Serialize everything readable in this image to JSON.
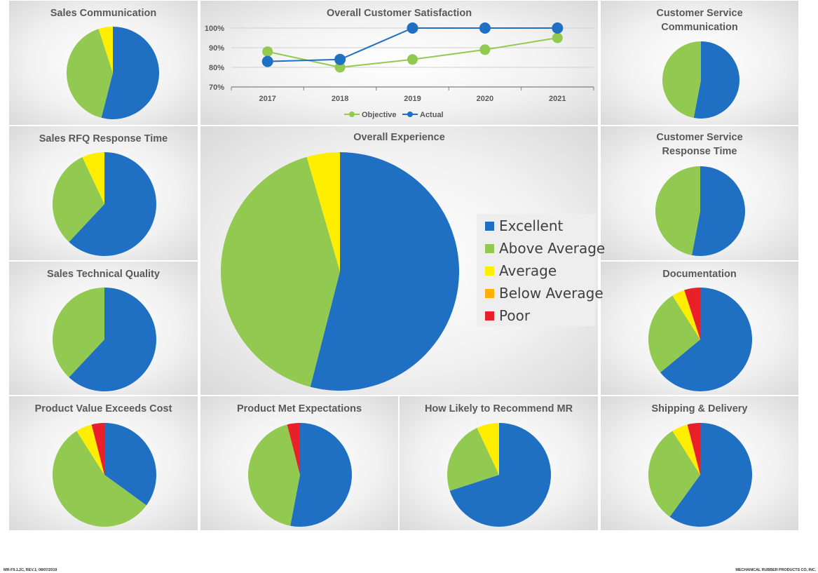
{
  "colors": {
    "Excellent": "#1f6fc2",
    "Above Average": "#92c950",
    "Average": "#ffee00",
    "Below Average": "#ffb000",
    "Poor": "#e8202a"
  },
  "legend": {
    "items": [
      "Excellent",
      "Above Average",
      "Average",
      "Below Average",
      "Poor"
    ]
  },
  "footer": {
    "left": "MR-F9.1.2C, REV.1; 08/07/2019",
    "right": "MECHANICAL RUBBER PRODUCTS CO, INC."
  },
  "chart_data": [
    {
      "id": "sales-communication",
      "type": "pie",
      "title": "Sales Communication",
      "categories": [
        "Excellent",
        "Above Average",
        "Average",
        "Below Average",
        "Poor"
      ],
      "values": [
        54,
        41,
        5,
        0,
        0
      ]
    },
    {
      "id": "overall-customer-satisfaction",
      "type": "line",
      "title": "Overall Customer Satisfaction",
      "categories": [
        "2017",
        "2018",
        "2019",
        "2020",
        "2021"
      ],
      "ylim": [
        70,
        100
      ],
      "yticks": [
        "70%",
        "80%",
        "90%",
        "100%"
      ],
      "ytick_values": [
        70,
        80,
        90,
        100
      ],
      "legend_position": "bottom",
      "series": [
        {
          "name": "Objective",
          "color": "#92c950",
          "values": [
            88,
            80,
            84,
            89,
            95
          ]
        },
        {
          "name": "Actual",
          "color": "#1f6fc2",
          "values": [
            83,
            84,
            100,
            100,
            100
          ]
        }
      ]
    },
    {
      "id": "customer-service-communication",
      "type": "pie",
      "title": "Customer Service\nCommunication",
      "categories": [
        "Excellent",
        "Above Average",
        "Average",
        "Below Average",
        "Poor"
      ],
      "values": [
        53,
        47,
        0,
        0,
        0
      ]
    },
    {
      "id": "sales-rfq-response-time",
      "type": "pie",
      "title": "Sales RFQ Response Time",
      "categories": [
        "Excellent",
        "Above Average",
        "Average",
        "Below Average",
        "Poor"
      ],
      "values": [
        62,
        31,
        7,
        0,
        0
      ]
    },
    {
      "id": "overall-experience",
      "type": "pie",
      "title": "Overall Experience",
      "categories": [
        "Excellent",
        "Above Average",
        "Average",
        "Below Average",
        "Poor"
      ],
      "values": [
        54,
        41.5,
        4.5,
        0,
        0
      ]
    },
    {
      "id": "customer-service-response-time",
      "type": "pie",
      "title": "Customer Service\nResponse Time",
      "categories": [
        "Excellent",
        "Above Average",
        "Average",
        "Below Average",
        "Poor"
      ],
      "values": [
        53,
        47,
        0,
        0,
        0
      ]
    },
    {
      "id": "sales-technical-quality",
      "type": "pie",
      "title": "Sales Technical Quality",
      "categories": [
        "Excellent",
        "Above Average",
        "Average",
        "Below Average",
        "Poor"
      ],
      "values": [
        62,
        38,
        0,
        0,
        0
      ]
    },
    {
      "id": "documentation",
      "type": "pie",
      "title": "Documentation",
      "categories": [
        "Excellent",
        "Above Average",
        "Average",
        "Below Average",
        "Poor"
      ],
      "values": [
        64,
        27,
        4,
        0,
        5
      ]
    },
    {
      "id": "product-value-exceeds-cost",
      "type": "pie",
      "title": "Product Value Exceeds Cost",
      "categories": [
        "Excellent",
        "Above Average",
        "Average",
        "Below Average",
        "Poor"
      ],
      "values": [
        35,
        56,
        5,
        0,
        4
      ]
    },
    {
      "id": "product-met-expectations",
      "type": "pie",
      "title": "Product Met Expectations",
      "categories": [
        "Excellent",
        "Above Average",
        "Average",
        "Below Average",
        "Poor"
      ],
      "values": [
        53,
        43,
        0,
        0,
        4
      ]
    },
    {
      "id": "how-likely-to-recommend-mr",
      "type": "pie",
      "title": "How Likely to Recommend MR",
      "categories": [
        "Excellent",
        "Above Average",
        "Average",
        "Below Average",
        "Poor"
      ],
      "values": [
        70,
        23,
        7,
        0,
        0
      ]
    },
    {
      "id": "shipping-delivery",
      "type": "pie",
      "title": "Shipping & Delivery",
      "categories": [
        "Excellent",
        "Above Average",
        "Average",
        "Below Average",
        "Poor"
      ],
      "values": [
        60,
        31,
        5,
        0,
        4
      ]
    }
  ]
}
